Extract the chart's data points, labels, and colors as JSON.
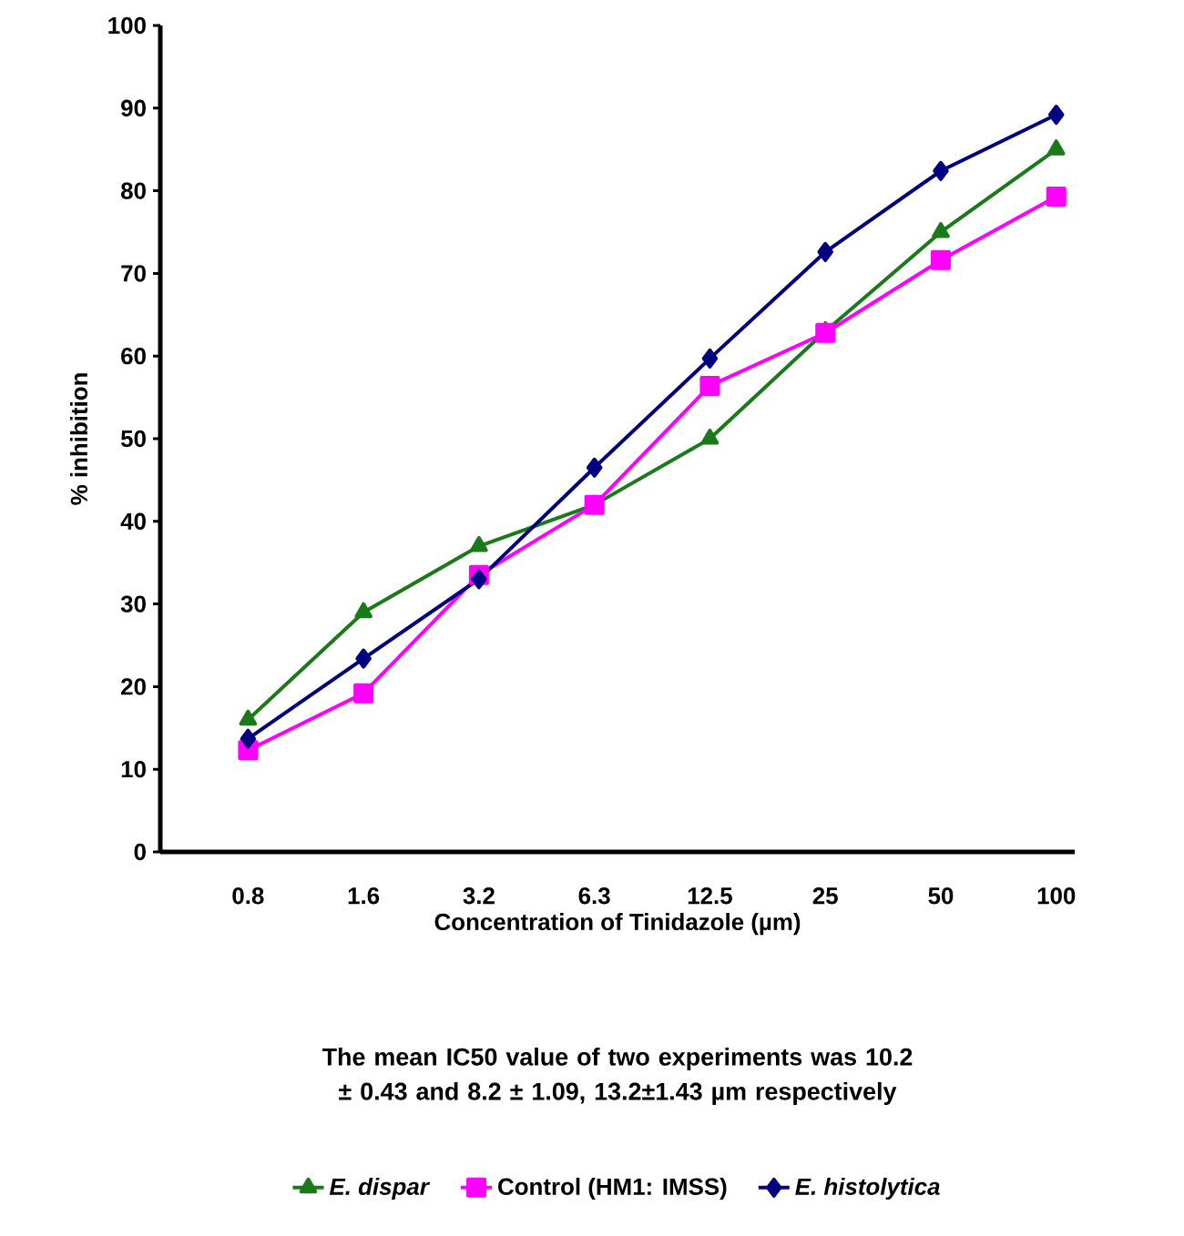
{
  "chart_data": {
    "type": "line",
    "xlabel": "Concentration of Tinidazole (µm)",
    "ylabel": "% inhibition",
    "categories": [
      "0.8",
      "1.6",
      "3.2",
      "6.3",
      "12.5",
      "25",
      "50",
      "100"
    ],
    "ylim": [
      0,
      100
    ],
    "yticks": [
      0,
      10,
      20,
      30,
      40,
      50,
      60,
      70,
      80,
      90,
      100
    ],
    "series": [
      {
        "name": "*E. dispar*",
        "color": "#1a7a1a",
        "marker": "triangle",
        "values": [
          16,
          29,
          37,
          42,
          50,
          63,
          75,
          85
        ]
      },
      {
        "name": "Control (HM1: IMSS)",
        "color": "#ff00ff",
        "marker": "square",
        "values": [
          12.3,
          19.2,
          33.5,
          42,
          56.4,
          62.8,
          71.6,
          79.3
        ]
      },
      {
        "name": "*E. histolytica*",
        "color": "#000080",
        "marker": "diamond",
        "values": [
          13.7,
          23.4,
          33,
          46.5,
          59.7,
          72.6,
          82.4,
          89.2
        ]
      }
    ],
    "line_style": "solid",
    "grid": false,
    "legend": "bottom",
    "annotations": [
      "The mean IC50 value of two experiments was 10.2 ± 0.43 and 8.2 ± 1.09, 13.2±1.43 µm respectively"
    ]
  }
}
